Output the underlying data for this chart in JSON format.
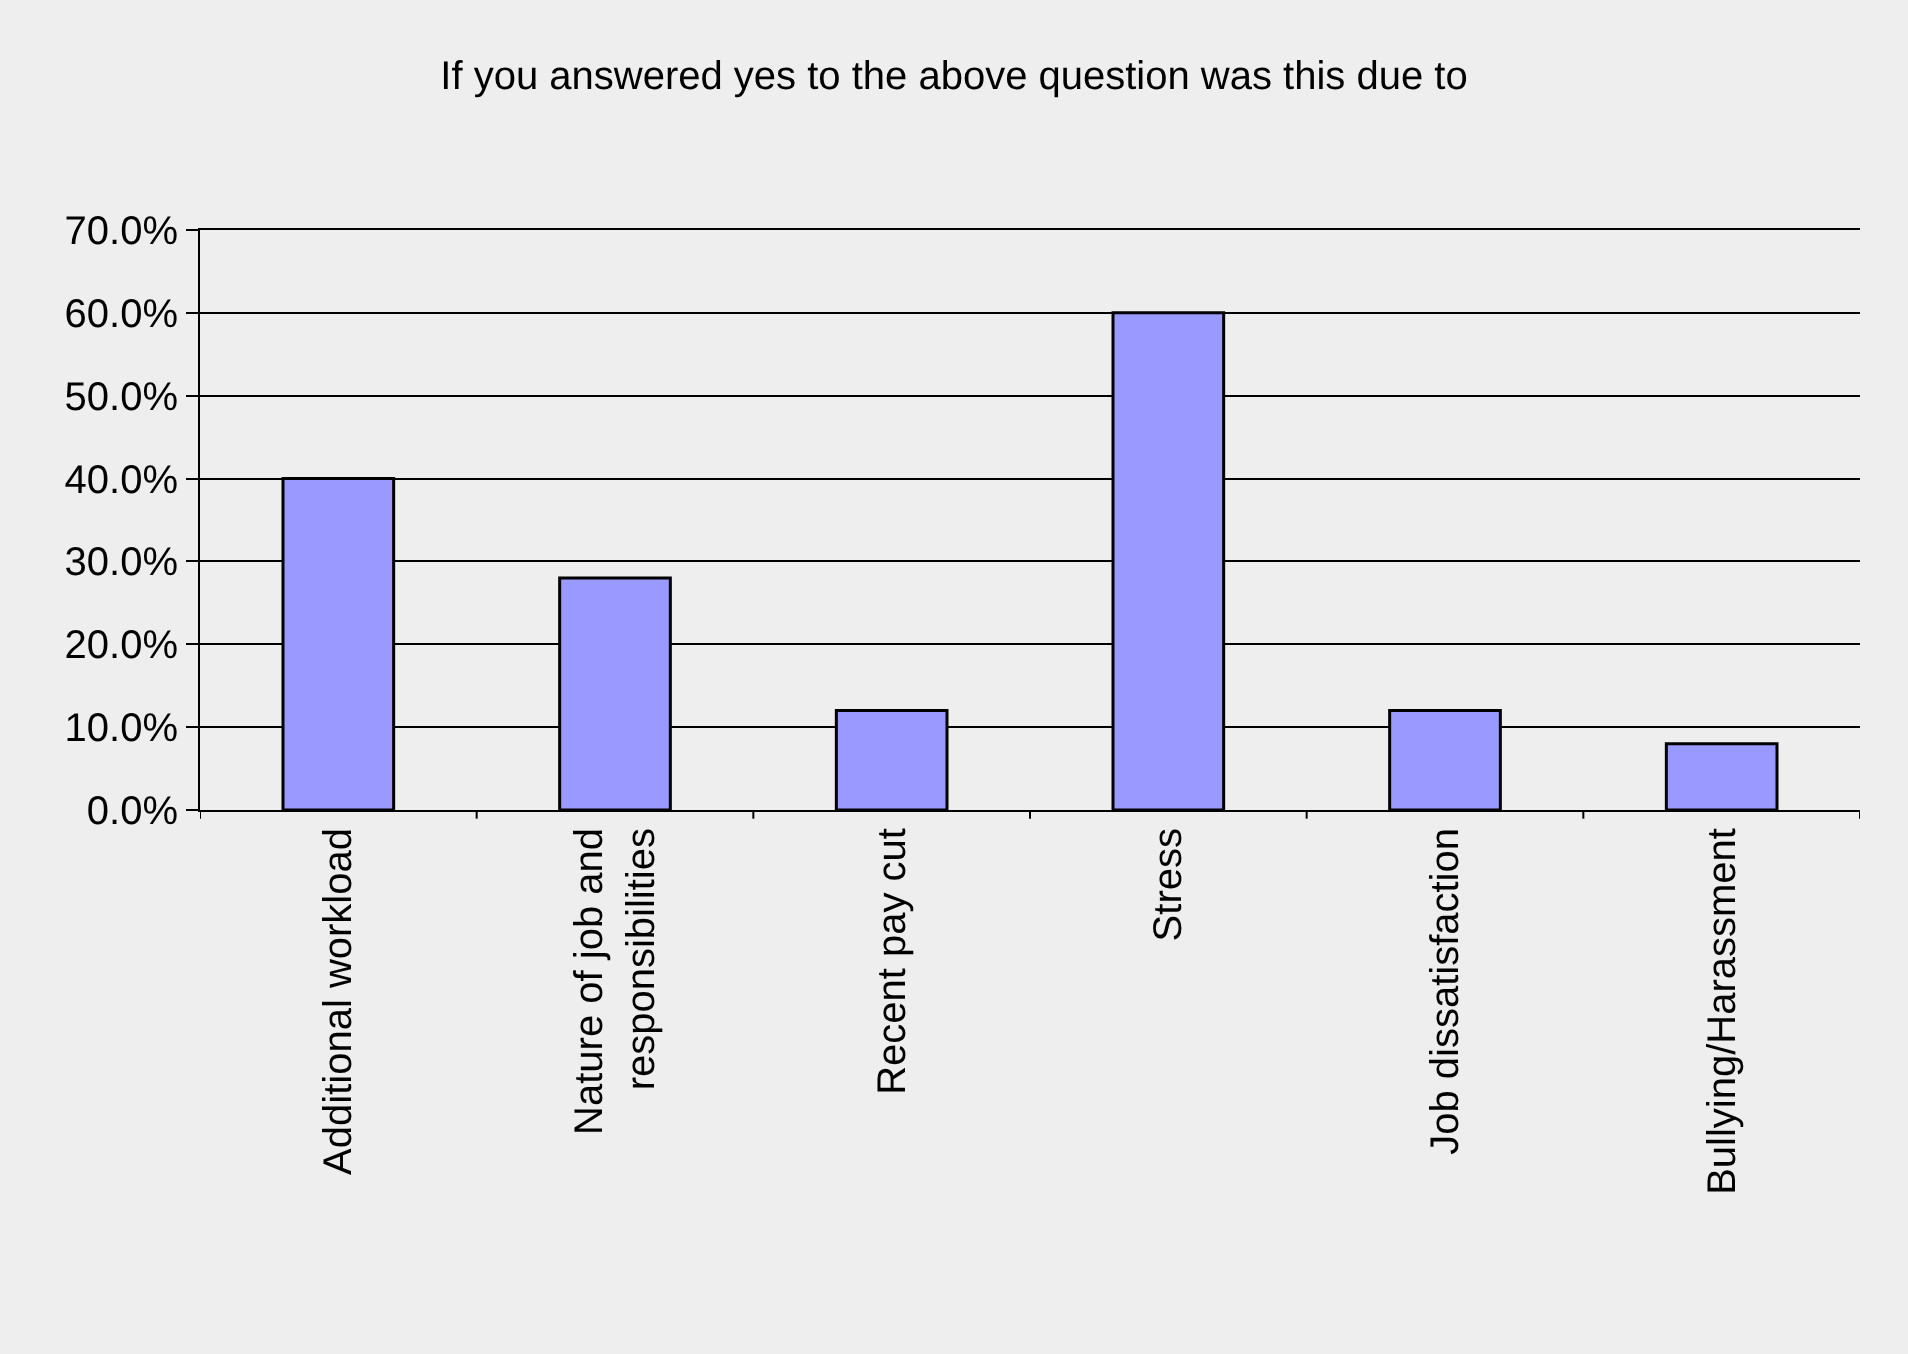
{
  "chart_data": {
    "type": "bar",
    "title": "If you answered yes to the above question was this due to",
    "categories": [
      "Additional workload",
      "Nature of job and\nresponsibilities",
      "Recent pay cut",
      "Stress",
      "Job dissatisfaction",
      "Bullying/Harassment"
    ],
    "values": [
      40,
      28,
      12,
      60,
      12,
      8
    ],
    "color": "#9999ff",
    "ylim": [
      0,
      70
    ],
    "yticks": [
      {
        "value": 0,
        "label": "0.0%"
      },
      {
        "value": 10,
        "label": "10.0%"
      },
      {
        "value": 20,
        "label": "20.0%"
      },
      {
        "value": 30,
        "label": "30.0%"
      },
      {
        "value": 40,
        "label": "40.0%"
      },
      {
        "value": 50,
        "label": "50.0%"
      },
      {
        "value": 60,
        "label": "60.0%"
      },
      {
        "value": 70,
        "label": "70.0%"
      }
    ],
    "grid": "y"
  }
}
